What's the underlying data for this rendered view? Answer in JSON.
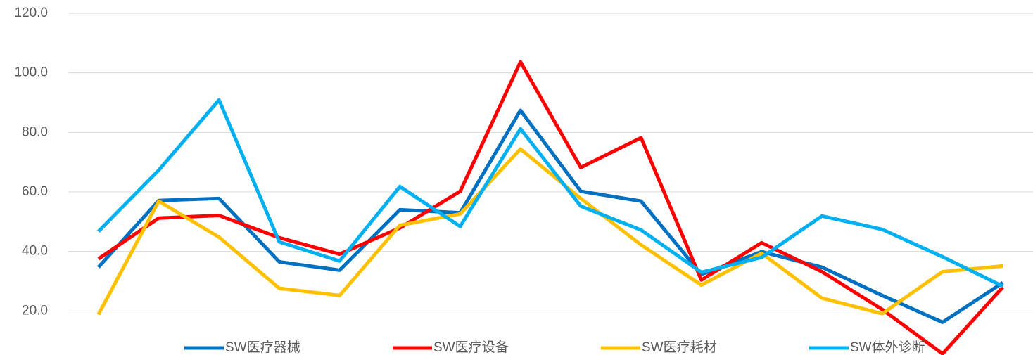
{
  "chart_data": {
    "type": "line",
    "categories": [
      null,
      null,
      null,
      null,
      null,
      null,
      null,
      null,
      null,
      null,
      null,
      null,
      null,
      null,
      null,
      null
    ],
    "series": [
      {
        "name": "SW医疗器械",
        "color": "#0070c0",
        "values": [
          34.7,
          57.1,
          57.8,
          36.5,
          33.7,
          54.0,
          53.0,
          87.4,
          60.2,
          56.9,
          32.3,
          39.9,
          34.7,
          25.2,
          16.2,
          29.5
        ]
      },
      {
        "name": "SW医疗设备",
        "color": "#ff0000",
        "values": [
          37.5,
          51.2,
          52.1,
          44.6,
          39.1,
          47.9,
          60.2,
          103.7,
          68.2,
          78.2,
          30.4,
          42.9,
          33.2,
          20.5,
          5.6,
          28.0
        ]
      },
      {
        "name": "SW医疗耗材",
        "color": "#ffc000",
        "values": [
          18.8,
          56.9,
          44.8,
          27.6,
          25.2,
          48.8,
          52.6,
          74.4,
          57.8,
          42.2,
          28.7,
          39.4,
          24.3,
          19.1,
          33.2,
          35.1
        ]
      },
      {
        "name": "SW体外诊断",
        "color": "#00b0f0",
        "values": [
          46.7,
          67.3,
          90.9,
          43.2,
          36.8,
          61.8,
          48.4,
          81.2,
          55.2,
          47.2,
          33.0,
          38.0,
          51.9,
          47.4,
          38.2,
          28.3
        ]
      }
    ],
    "ylim": [
      0,
      120
    ],
    "yticks": [
      {
        "value": 20,
        "label": "20.0"
      },
      {
        "value": 40,
        "label": "40.0"
      },
      {
        "value": 60,
        "label": "60.0"
      },
      {
        "value": 80,
        "label": "80.0"
      },
      {
        "value": 100,
        "label": "100.0"
      },
      {
        "value": 120,
        "label": "120.0"
      }
    ],
    "grid": true,
    "legend": "bottom"
  }
}
